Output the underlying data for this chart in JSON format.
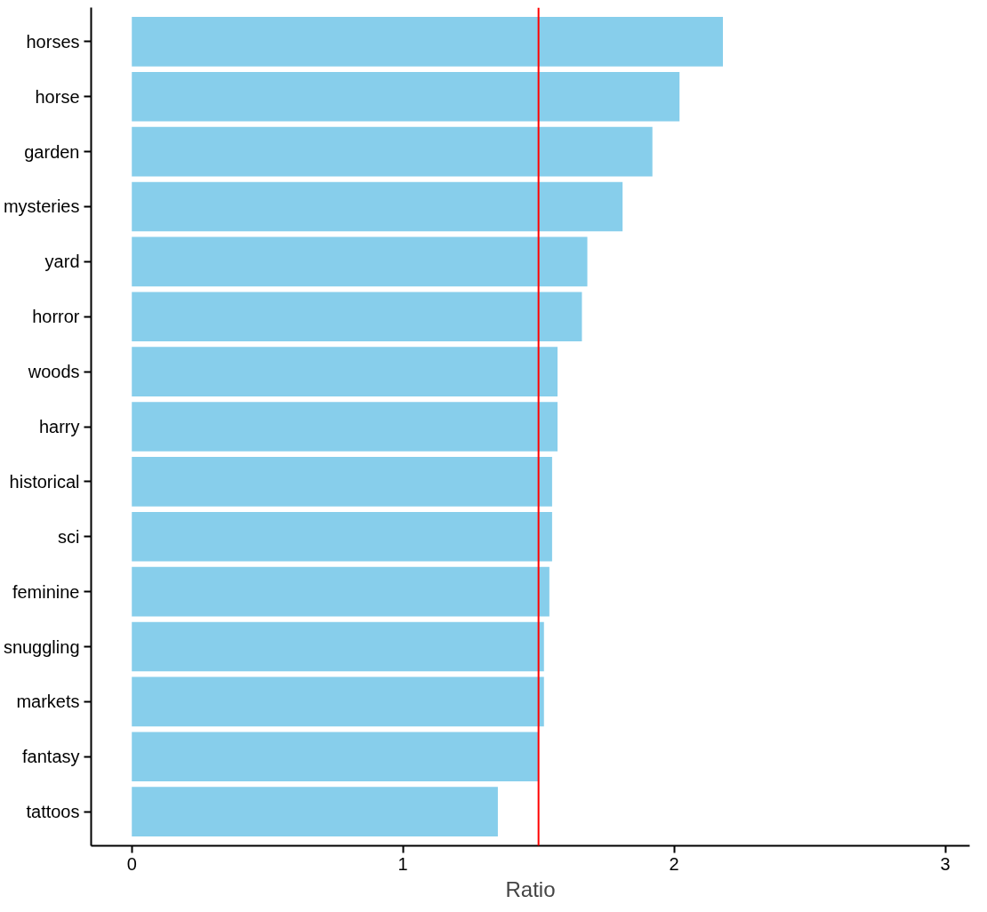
{
  "chart_data": {
    "type": "bar",
    "orientation": "horizontal",
    "xlabel": "Ratio",
    "categories": [
      "horses",
      "horse",
      "garden",
      "mysteries",
      "yard",
      "horror",
      "woods",
      "harry",
      "historical",
      "sci",
      "feminine",
      "snuggling",
      "markets",
      "fantasy",
      "tattoos"
    ],
    "values": [
      2.18,
      2.02,
      1.92,
      1.81,
      1.68,
      1.66,
      1.57,
      1.57,
      1.55,
      1.55,
      1.54,
      1.52,
      1.52,
      1.5,
      1.35
    ],
    "color": "#87ceeb",
    "xlim": [
      -0.15,
      3.09
    ],
    "xticks": [
      0,
      1,
      2,
      3
    ],
    "grid": false,
    "ref_lines": [
      {
        "axis": "x",
        "value": 1.5,
        "color": "#ff0000"
      }
    ]
  }
}
